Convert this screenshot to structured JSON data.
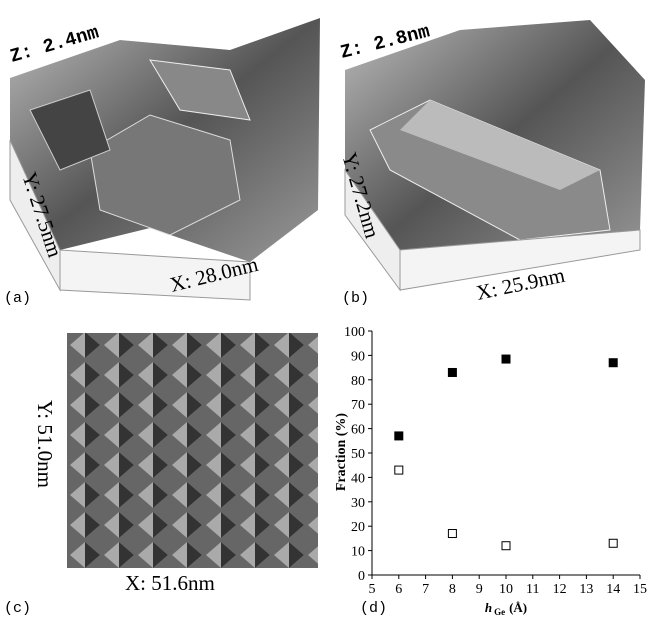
{
  "panels": {
    "a": {
      "z_label": "Z: 2.4nm",
      "y_label": "Y: 27.5nm",
      "x_label": "X: 28.0nm",
      "tag": "(a)"
    },
    "b": {
      "z_label": "Z: 2.8nm",
      "y_label": "Y: 27.2nm",
      "x_label": "X: 25.9nm",
      "tag": "(b)"
    },
    "c": {
      "y_label": "Y: 51.0nm",
      "x_label": "X: 51.6nm",
      "tag": "(c)"
    },
    "d": {
      "tag": "(d)"
    }
  },
  "chart_data": {
    "type": "scatter",
    "y_label": "Fraction (%)",
    "x_label": "h",
    "x_label_sub": "Ge",
    "x_label_unit": "(Å)",
    "xlim": [
      5,
      15
    ],
    "xticks": [
      5,
      6,
      7,
      8,
      9,
      10,
      11,
      12,
      13,
      14,
      15
    ],
    "ylim": [
      0,
      100
    ],
    "yticks": [
      0,
      10,
      20,
      30,
      40,
      50,
      60,
      70,
      80,
      90,
      100
    ],
    "series": [
      {
        "marker": "filled",
        "color": "#000000",
        "x": [
          6,
          8,
          10,
          14
        ],
        "values": [
          57,
          83,
          88.5,
          87
        ]
      },
      {
        "marker": "open",
        "color": "#000000",
        "x": [
          6,
          8,
          10,
          14
        ],
        "values": [
          43,
          17,
          12,
          13
        ]
      }
    ]
  }
}
